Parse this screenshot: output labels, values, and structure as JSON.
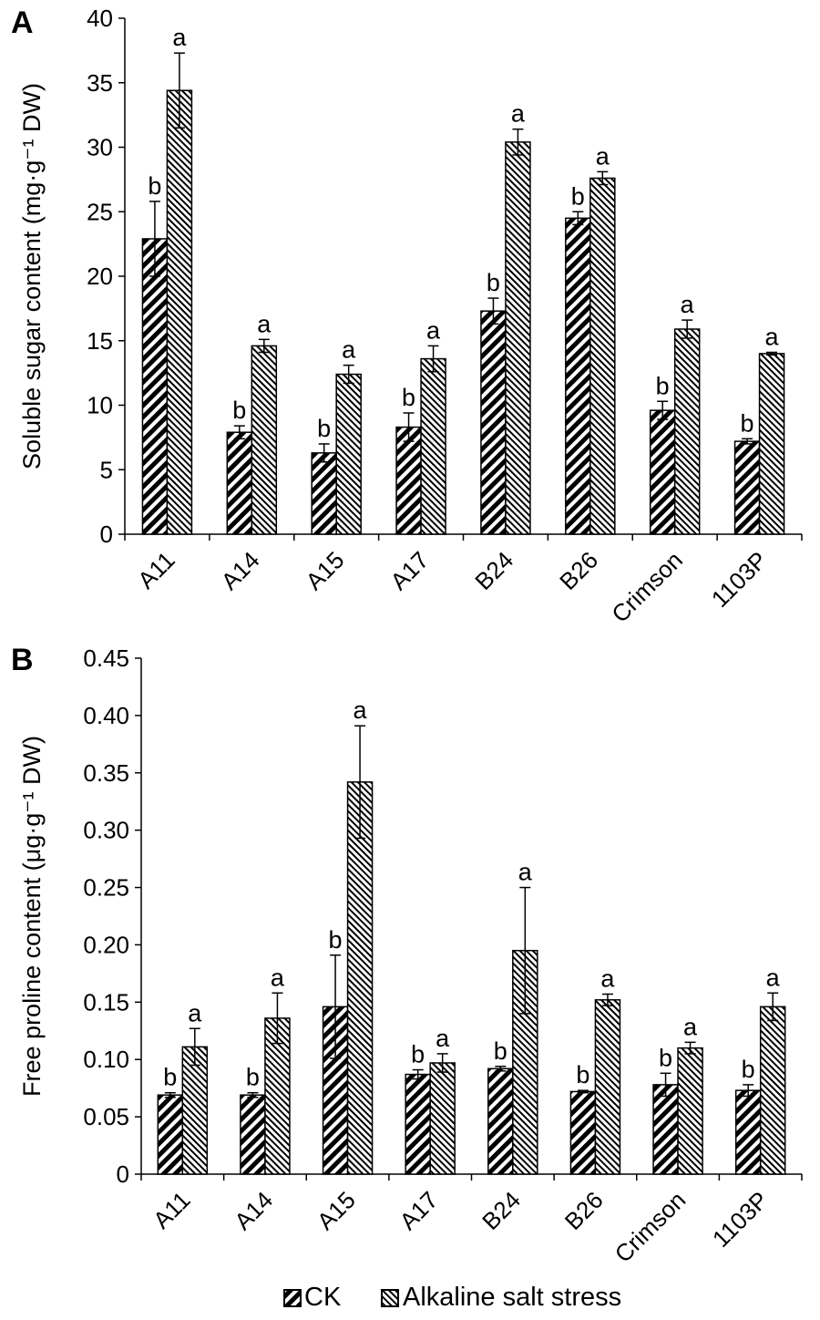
{
  "legend": {
    "ck_label": "CK",
    "stress_label": "Alkaline salt stress"
  },
  "chart_data": [
    {
      "type": "bar",
      "panel": "A",
      "ylabel": "Soluble sugar content (mg·g⁻¹ DW)",
      "ylim": [
        0,
        40
      ],
      "yticks": [
        "0",
        "5",
        "10",
        "15",
        "20",
        "25",
        "30",
        "35",
        "40"
      ],
      "categories": [
        "A11",
        "A14",
        "A15",
        "A17",
        "B24",
        "B26",
        "Crimson",
        "1103P"
      ],
      "series": [
        {
          "name": "CK",
          "values": [
            22.9,
            7.9,
            6.3,
            8.3,
            17.3,
            24.5,
            9.6,
            7.2
          ],
          "errors": [
            2.9,
            0.5,
            0.7,
            1.1,
            1.0,
            0.5,
            0.7,
            0.2
          ],
          "letters": [
            "b",
            "b",
            "b",
            "b",
            "b",
            "b",
            "b",
            "b"
          ]
        },
        {
          "name": "Alkaline salt stress",
          "values": [
            34.4,
            14.6,
            12.4,
            13.6,
            30.4,
            27.6,
            15.9,
            14.0
          ],
          "errors": [
            2.9,
            0.5,
            0.7,
            1.0,
            1.0,
            0.5,
            0.7,
            0.1
          ],
          "letters": [
            "a",
            "a",
            "a",
            "a",
            "a",
            "a",
            "a",
            "a"
          ]
        }
      ]
    },
    {
      "type": "bar",
      "panel": "B",
      "ylabel": "Free proline content (μg·g⁻¹ DW)",
      "ylim": [
        0,
        0.45
      ],
      "yticks": [
        "0",
        "0.05",
        "0.10",
        "0.15",
        "0.20",
        "0.25",
        "0.30",
        "0.35",
        "0.40",
        "0.45"
      ],
      "categories": [
        "A11",
        "A14",
        "A15",
        "A17",
        "B24",
        "B26",
        "Crimson",
        "1103P"
      ],
      "series": [
        {
          "name": "CK",
          "values": [
            0.069,
            0.069,
            0.146,
            0.087,
            0.092,
            0.072,
            0.078,
            0.073
          ],
          "errors": [
            0.002,
            0.002,
            0.045,
            0.004,
            0.002,
            0.001,
            0.01,
            0.005
          ],
          "letters": [
            "b",
            "b",
            "b",
            "b",
            "b",
            "b",
            "b",
            "b"
          ]
        },
        {
          "name": "Alkaline salt stress",
          "values": [
            0.111,
            0.136,
            0.342,
            0.097,
            0.195,
            0.152,
            0.11,
            0.146
          ],
          "errors": [
            0.016,
            0.022,
            0.049,
            0.008,
            0.055,
            0.005,
            0.005,
            0.012
          ],
          "letters": [
            "a",
            "a",
            "a",
            "a",
            "a",
            "a",
            "a",
            "a"
          ]
        }
      ]
    }
  ]
}
